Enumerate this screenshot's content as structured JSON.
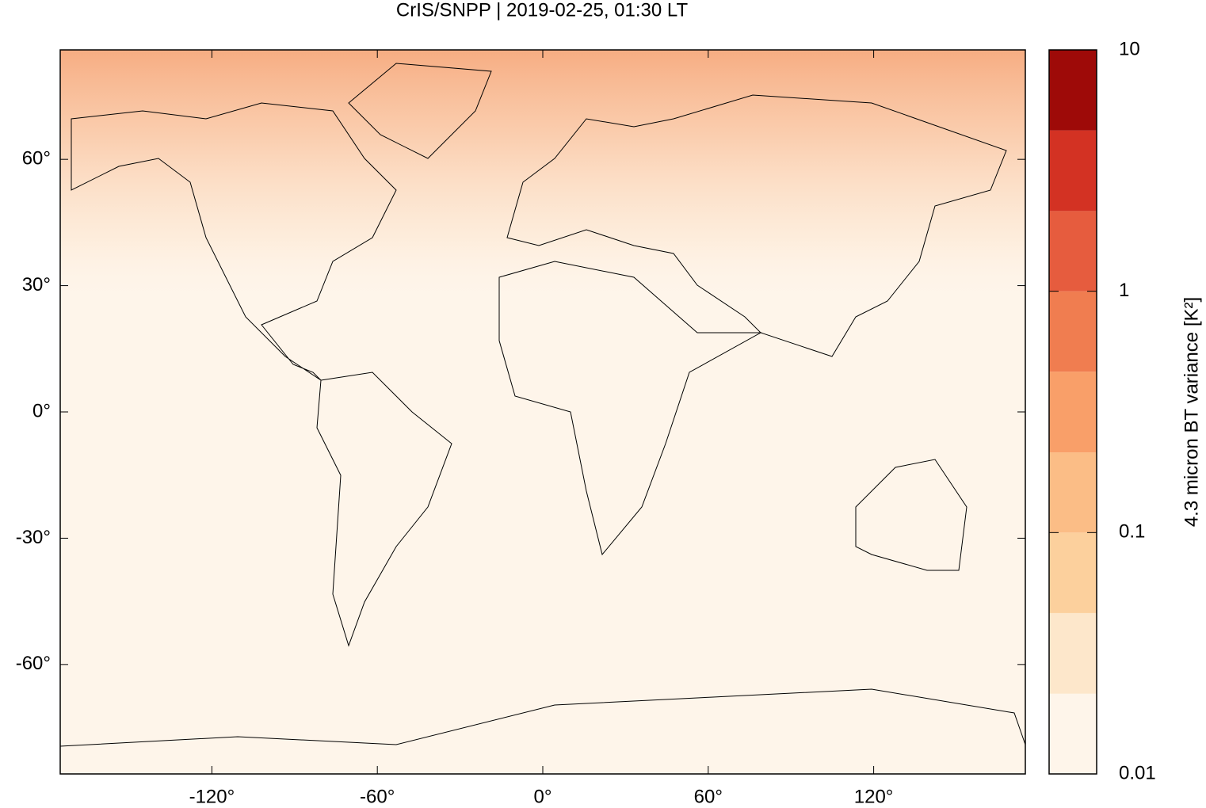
{
  "chart_data": {
    "type": "map",
    "title": "CrIS/SNPP | 2019-02-25, 01:30 LT",
    "xlim": [
      -175,
      175
    ],
    "ylim": [
      -86,
      86
    ],
    "xticks": [
      {
        "value": -120,
        "label": "-120°"
      },
      {
        "value": -60,
        "label": "-60°"
      },
      {
        "value": 0,
        "label": "0°"
      },
      {
        "value": 60,
        "label": "60°"
      },
      {
        "value": 120,
        "label": "120°"
      }
    ],
    "yticks": [
      {
        "value": -60,
        "label": "-60°"
      },
      {
        "value": -30,
        "label": "-30°"
      },
      {
        "value": 0,
        "label": "0°"
      },
      {
        "value": 30,
        "label": "30°"
      },
      {
        "value": 60,
        "label": "60°"
      }
    ],
    "background": "#fef5ea",
    "colorbar": {
      "label": "4.3 micron BT variance [K²]",
      "scale": "log",
      "lim": [
        0.01,
        10
      ],
      "ticks": [
        0.01,
        0.1,
        1,
        10
      ],
      "levels": [
        0.01,
        0.0215,
        0.0464,
        0.1,
        0.215,
        0.464,
        1,
        2.15,
        4.64,
        10
      ],
      "colors": [
        "#fef5ea",
        "#fde7cb",
        "#fcd09d",
        "#fbbd86",
        "#f99f69",
        "#f07d50",
        "#e65c3e",
        "#d33223",
        "#9e0a08"
      ]
    }
  }
}
